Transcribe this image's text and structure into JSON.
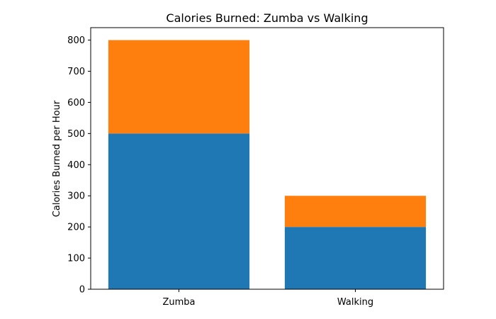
{
  "chart_data": {
    "type": "bar",
    "stacked": true,
    "title": "Calories Burned: Zumba vs Walking",
    "xlabel": "",
    "ylabel": "Calories Burned per Hour",
    "categories": [
      "Zumba",
      "Walking"
    ],
    "series": [
      {
        "values": [
          500,
          200
        ],
        "color": "#1f77b4"
      },
      {
        "values": [
          300,
          100
        ],
        "color": "#ff7f0e"
      }
    ],
    "ylim": [
      0,
      840
    ],
    "yticks": [
      0,
      100,
      200,
      300,
      400,
      500,
      600,
      700,
      800
    ],
    "grid": false,
    "legend": "none"
  }
}
